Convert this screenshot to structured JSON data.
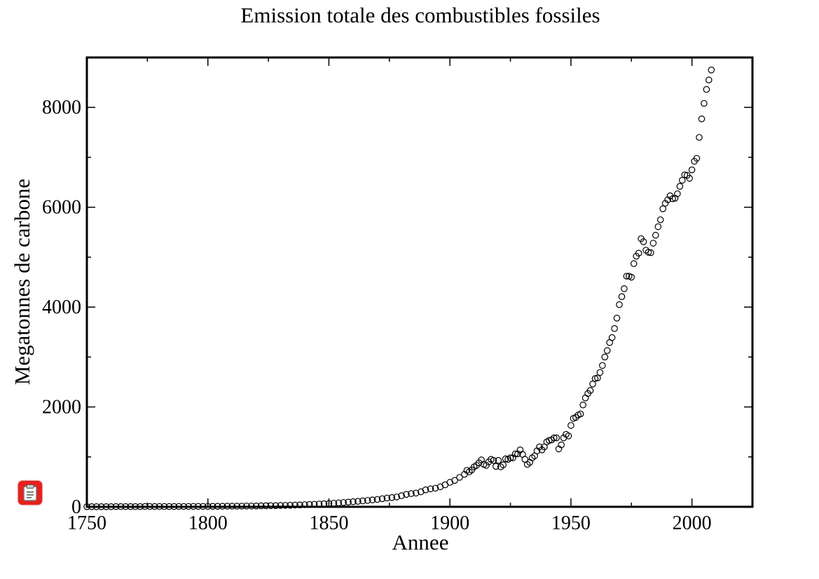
{
  "chart_data": {
    "type": "scatter",
    "title": "Emission totale des combustibles fossiles",
    "xlabel": "Annee",
    "ylabel": "Megatonnes de carbone",
    "xlim": [
      1750,
      2025
    ],
    "ylim": [
      0,
      9000
    ],
    "xticks": [
      1750,
      1800,
      1850,
      1900,
      1950,
      2000
    ],
    "yticks": [
      0,
      2000,
      4000,
      6000,
      8000
    ],
    "xtick_labels": [
      "1750",
      "1800",
      "1850",
      "1900",
      "1950",
      "2000"
    ],
    "ytick_labels": [
      "0",
      "2000",
      "4000",
      "6000",
      "8000"
    ],
    "marker": "open-circle",
    "grid": false,
    "series": [
      {
        "points": [
          [
            1750,
            3
          ],
          [
            1752,
            3
          ],
          [
            1754,
            3
          ],
          [
            1756,
            3
          ],
          [
            1758,
            3
          ],
          [
            1760,
            3
          ],
          [
            1762,
            4
          ],
          [
            1764,
            4
          ],
          [
            1766,
            4
          ],
          [
            1768,
            4
          ],
          [
            1770,
            4
          ],
          [
            1772,
            4
          ],
          [
            1774,
            5
          ],
          [
            1776,
            5
          ],
          [
            1778,
            5
          ],
          [
            1780,
            5
          ],
          [
            1782,
            5
          ],
          [
            1784,
            6
          ],
          [
            1786,
            6
          ],
          [
            1788,
            7
          ],
          [
            1790,
            7
          ],
          [
            1792,
            7
          ],
          [
            1794,
            8
          ],
          [
            1796,
            8
          ],
          [
            1798,
            9
          ],
          [
            1800,
            9
          ],
          [
            1802,
            10
          ],
          [
            1804,
            10
          ],
          [
            1806,
            11
          ],
          [
            1808,
            12
          ],
          [
            1810,
            12
          ],
          [
            1812,
            13
          ],
          [
            1814,
            14
          ],
          [
            1816,
            15
          ],
          [
            1818,
            16
          ],
          [
            1820,
            17
          ],
          [
            1822,
            19
          ],
          [
            1824,
            20
          ],
          [
            1826,
            22
          ],
          [
            1828,
            24
          ],
          [
            1830,
            26
          ],
          [
            1832,
            28
          ],
          [
            1834,
            31
          ],
          [
            1836,
            34
          ],
          [
            1838,
            38
          ],
          [
            1840,
            42
          ],
          [
            1842,
            46
          ],
          [
            1844,
            51
          ],
          [
            1846,
            56
          ],
          [
            1848,
            61
          ],
          [
            1850,
            66
          ],
          [
            1852,
            72
          ],
          [
            1854,
            79
          ],
          [
            1856,
            86
          ],
          [
            1858,
            94
          ],
          [
            1860,
            102
          ],
          [
            1862,
            110
          ],
          [
            1864,
            118
          ],
          [
            1866,
            128
          ],
          [
            1868,
            138
          ],
          [
            1870,
            148
          ],
          [
            1872,
            162
          ],
          [
            1874,
            176
          ],
          [
            1876,
            185
          ],
          [
            1878,
            196
          ],
          [
            1880,
            222
          ],
          [
            1882,
            248
          ],
          [
            1884,
            264
          ],
          [
            1886,
            275
          ],
          [
            1888,
            300
          ],
          [
            1890,
            340
          ],
          [
            1892,
            360
          ],
          [
            1894,
            372
          ],
          [
            1896,
            400
          ],
          [
            1898,
            440
          ],
          [
            1900,
            490
          ],
          [
            1902,
            530
          ],
          [
            1904,
            590
          ],
          [
            1906,
            650
          ],
          [
            1907,
            730
          ],
          [
            1908,
            700
          ],
          [
            1909,
            740
          ],
          [
            1910,
            800
          ],
          [
            1911,
            830
          ],
          [
            1912,
            880
          ],
          [
            1913,
            940
          ],
          [
            1914,
            850
          ],
          [
            1915,
            830
          ],
          [
            1916,
            900
          ],
          [
            1917,
            950
          ],
          [
            1918,
            930
          ],
          [
            1919,
            810
          ],
          [
            1920,
            930
          ],
          [
            1921,
            800
          ],
          [
            1922,
            840
          ],
          [
            1923,
            960
          ],
          [
            1924,
            950
          ],
          [
            1925,
            980
          ],
          [
            1926,
            980
          ],
          [
            1927,
            1060
          ],
          [
            1928,
            1060
          ],
          [
            1929,
            1140
          ],
          [
            1930,
            1050
          ],
          [
            1931,
            950
          ],
          [
            1932,
            850
          ],
          [
            1933,
            890
          ],
          [
            1934,
            980
          ],
          [
            1935,
            1020
          ],
          [
            1936,
            1120
          ],
          [
            1937,
            1200
          ],
          [
            1938,
            1140
          ],
          [
            1939,
            1200
          ],
          [
            1940,
            1300
          ],
          [
            1941,
            1330
          ],
          [
            1942,
            1340
          ],
          [
            1943,
            1380
          ],
          [
            1944,
            1380
          ],
          [
            1945,
            1160
          ],
          [
            1946,
            1240
          ],
          [
            1947,
            1380
          ],
          [
            1948,
            1450
          ],
          [
            1949,
            1420
          ],
          [
            1950,
            1630
          ],
          [
            1951,
            1770
          ],
          [
            1952,
            1790
          ],
          [
            1953,
            1840
          ],
          [
            1954,
            1860
          ],
          [
            1955,
            2040
          ],
          [
            1956,
            2180
          ],
          [
            1957,
            2270
          ],
          [
            1958,
            2330
          ],
          [
            1959,
            2460
          ],
          [
            1960,
            2570
          ],
          [
            1961,
            2580
          ],
          [
            1962,
            2690
          ],
          [
            1963,
            2830
          ],
          [
            1964,
            3000
          ],
          [
            1965,
            3130
          ],
          [
            1966,
            3290
          ],
          [
            1967,
            3390
          ],
          [
            1968,
            3570
          ],
          [
            1969,
            3780
          ],
          [
            1970,
            4050
          ],
          [
            1971,
            4210
          ],
          [
            1972,
            4370
          ],
          [
            1973,
            4620
          ],
          [
            1974,
            4620
          ],
          [
            1975,
            4600
          ],
          [
            1976,
            4870
          ],
          [
            1977,
            5020
          ],
          [
            1978,
            5080
          ],
          [
            1979,
            5370
          ],
          [
            1980,
            5310
          ],
          [
            1981,
            5140
          ],
          [
            1982,
            5100
          ],
          [
            1983,
            5090
          ],
          [
            1984,
            5280
          ],
          [
            1985,
            5440
          ],
          [
            1986,
            5610
          ],
          [
            1987,
            5750
          ],
          [
            1988,
            5970
          ],
          [
            1989,
            6080
          ],
          [
            1990,
            6150
          ],
          [
            1991,
            6230
          ],
          [
            1992,
            6170
          ],
          [
            1993,
            6180
          ],
          [
            1994,
            6270
          ],
          [
            1995,
            6420
          ],
          [
            1996,
            6540
          ],
          [
            1997,
            6650
          ],
          [
            1998,
            6640
          ],
          [
            1999,
            6580
          ],
          [
            2000,
            6750
          ],
          [
            2001,
            6920
          ],
          [
            2002,
            6980
          ],
          [
            2003,
            7400
          ],
          [
            2004,
            7770
          ],
          [
            2005,
            8080
          ],
          [
            2006,
            8360
          ],
          [
            2007,
            8550
          ],
          [
            2008,
            8750
          ]
        ]
      }
    ]
  },
  "app_badge": {
    "icon": "clipboard-icon",
    "color": "#e8201d"
  }
}
